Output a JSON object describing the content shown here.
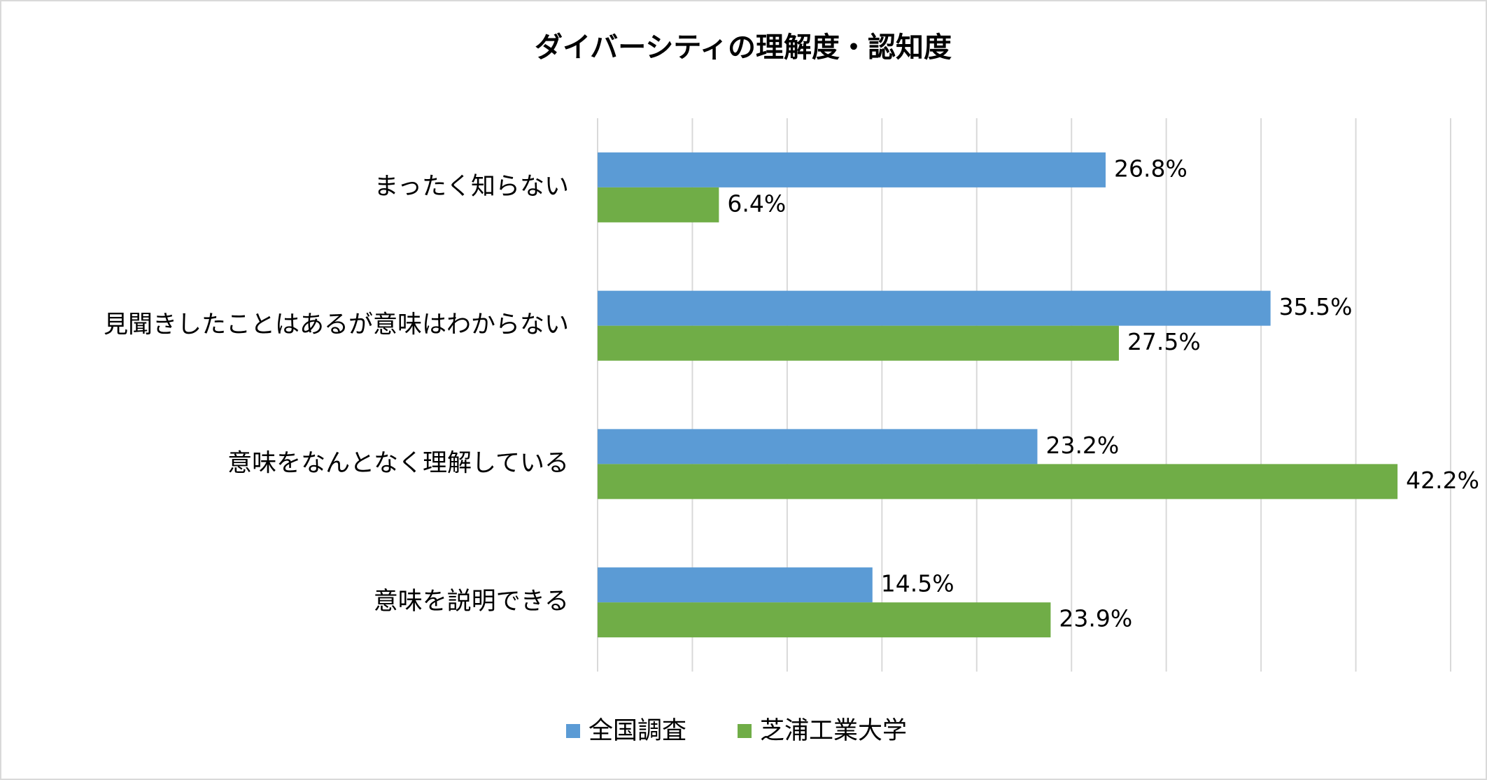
{
  "chart_data": {
    "type": "bar",
    "orientation": "horizontal",
    "title": "ダイバーシティの理解度・認知度",
    "categories": [
      "まったく知らない",
      "見聞きしたことはあるが意味はわからない",
      "意味をなんとなく理解している",
      "意味を説明できる"
    ],
    "series": [
      {
        "name": "全国調査",
        "color": "#5b9bd5",
        "values": [
          26.8,
          35.5,
          23.2,
          14.5
        ],
        "value_labels": [
          "26.8%",
          "35.5%",
          "23.2%",
          "14.5%"
        ]
      },
      {
        "name": "芝浦工業大学",
        "color": "#70ad47",
        "values": [
          6.4,
          27.5,
          42.2,
          23.9
        ],
        "value_labels": [
          "6.4%",
          "27.5%",
          "42.2%",
          "23.9%"
        ]
      }
    ],
    "xlim": [
      0,
      45
    ],
    "xticks": [
      0,
      5,
      10,
      15,
      20,
      25,
      30,
      35,
      40,
      45
    ],
    "grid": true,
    "legend": "bottom"
  }
}
